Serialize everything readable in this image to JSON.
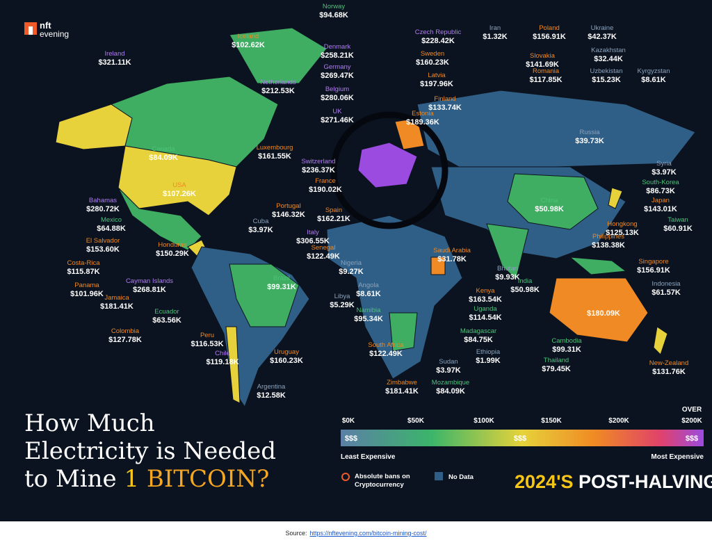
{
  "header": {
    "logo_top": "nft",
    "logo_bottom": "evening"
  },
  "countries": [
    {
      "name": "Ireland",
      "cost": "$321.11K"
    },
    {
      "name": "Iceland",
      "cost": "$102.62K"
    },
    {
      "name": "Norway",
      "cost": "$94.68K"
    },
    {
      "name": "Denmark",
      "cost": "$258.21K"
    },
    {
      "name": "Germany",
      "cost": "$269.47K"
    },
    {
      "name": "Netherlands",
      "cost": "$212.53K"
    },
    {
      "name": "Belgium",
      "cost": "$280.06K"
    },
    {
      "name": "UK",
      "cost": "$271.46K"
    },
    {
      "name": "Czech Republic",
      "cost": "$228.42K"
    },
    {
      "name": "Iran",
      "cost": "$1.32K"
    },
    {
      "name": "Poland",
      "cost": "$156.91K"
    },
    {
      "name": "Ukraine",
      "cost": "$42.37K"
    },
    {
      "name": "Sweden",
      "cost": "$160.23K"
    },
    {
      "name": "Slovakia",
      "cost": "$141.69K"
    },
    {
      "name": "Kazakhstan",
      "cost": "$32.44K"
    },
    {
      "name": "Latvia",
      "cost": "$197.96K"
    },
    {
      "name": "Romania",
      "cost": "$117.85K"
    },
    {
      "name": "Uzbekistan",
      "cost": "$15.23K"
    },
    {
      "name": "Kyrgyzstan",
      "cost": "$8.61K"
    },
    {
      "name": "Finland",
      "cost": "$133.74K"
    },
    {
      "name": "Estonia",
      "cost": "$189.36K"
    },
    {
      "name": "Russia",
      "cost": "$39.73K"
    },
    {
      "name": "Luxembourg",
      "cost": "$161.55K"
    },
    {
      "name": "Switzerland",
      "cost": "$236.37K"
    },
    {
      "name": "Canada",
      "cost": "$84.09K"
    },
    {
      "name": "Syria",
      "cost": "$3.97K"
    },
    {
      "name": "USA",
      "cost": "$107.26K"
    },
    {
      "name": "France",
      "cost": "$190.02K"
    },
    {
      "name": "South-Korea",
      "cost": "$86.73K"
    },
    {
      "name": "China",
      "cost": "$50.98K"
    },
    {
      "name": "Japan",
      "cost": "$143.01K"
    },
    {
      "name": "Bahamas",
      "cost": "$280.72K"
    },
    {
      "name": "Portugal",
      "cost": "$146.32K"
    },
    {
      "name": "Spain",
      "cost": "$162.21K"
    },
    {
      "name": "Mexico",
      "cost": "$64.88K"
    },
    {
      "name": "Cuba",
      "cost": "$3.97K"
    },
    {
      "name": "Taiwan",
      "cost": "$60.91K"
    },
    {
      "name": "Hongkong",
      "cost": "$125.13K"
    },
    {
      "name": "Philippines",
      "cost": "$138.38K"
    },
    {
      "name": "El Salvador",
      "cost": "$153.60K"
    },
    {
      "name": "Italy",
      "cost": "$306.55K"
    },
    {
      "name": "Honduras",
      "cost": "$150.29K"
    },
    {
      "name": "Senegal",
      "cost": "$122.49K"
    },
    {
      "name": "Saudi Arabia",
      "cost": "$31.78K"
    },
    {
      "name": "Singapore",
      "cost": "$156.91K"
    },
    {
      "name": "Nigeria",
      "cost": "$9.27K"
    },
    {
      "name": "Costa-Rica",
      "cost": "$115.87K"
    },
    {
      "name": "Bhutan",
      "cost": "$9.93K"
    },
    {
      "name": "India",
      "cost": "$50.98K"
    },
    {
      "name": "Indonesia",
      "cost": "$61.57K"
    },
    {
      "name": "Panama",
      "cost": "$101.96K"
    },
    {
      "name": "Cayman Islands",
      "cost": "$268.81K"
    },
    {
      "name": "Angola",
      "cost": "$8.61K"
    },
    {
      "name": "Kenya",
      "cost": "$163.54K"
    },
    {
      "name": "Jamaica",
      "cost": "$181.41K"
    },
    {
      "name": "Libya",
      "cost": "$5.29K"
    },
    {
      "name": "Brazil",
      "cost": "$99.31K"
    },
    {
      "name": "Australia",
      "cost": "$180.09K"
    },
    {
      "name": "Uganda",
      "cost": "$114.54K"
    },
    {
      "name": "Ecuador",
      "cost": "$63.56K"
    },
    {
      "name": "Namibia",
      "cost": "$95.34K"
    },
    {
      "name": "Madagascar",
      "cost": "$84.75K"
    },
    {
      "name": "Colombia",
      "cost": "$127.78K"
    },
    {
      "name": "Peru",
      "cost": "$116.53K"
    },
    {
      "name": "Cambodia",
      "cost": "$99.31K"
    },
    {
      "name": "South Africa",
      "cost": "$122.49K"
    },
    {
      "name": "Ethiopia",
      "cost": "$1.99K"
    },
    {
      "name": "Chile",
      "cost": "$119.18K"
    },
    {
      "name": "Uruguay",
      "cost": "$160.23K"
    },
    {
      "name": "Thailand",
      "cost": "$79.45K"
    },
    {
      "name": "Sudan",
      "cost": "$3.97K"
    },
    {
      "name": "New-Zealand",
      "cost": "$131.76K"
    },
    {
      "name": "Zimbabwe",
      "cost": "$181.41K"
    },
    {
      "name": "Mozambique",
      "cost": "$84.09K"
    },
    {
      "name": "Argentina",
      "cost": "$12.58K"
    }
  ],
  "title": {
    "line1": "How Much",
    "line2": "Electricity is Needed",
    "line3_start": "to Mine",
    "line3_number": "1",
    "line3_end": "BITCOIN?"
  },
  "legend": {
    "scale_labels": [
      "$0K",
      "$50K",
      "$100K",
      "$150K",
      "$200K",
      "$200K"
    ],
    "over_label": "OVER",
    "symbol": "$$$",
    "least": "Least Expensive",
    "most": "Most Expensive",
    "ban_line1": "Absolute bans on",
    "ban_line2": "Cryptocurrency",
    "no_data": "No Data"
  },
  "badge": {
    "year": "2024'S",
    "text": "POST-HALVING"
  },
  "footer": {
    "source_label": "Source:",
    "source_link": "https://nftevening.com/bitcoin-mining-cost/"
  }
}
